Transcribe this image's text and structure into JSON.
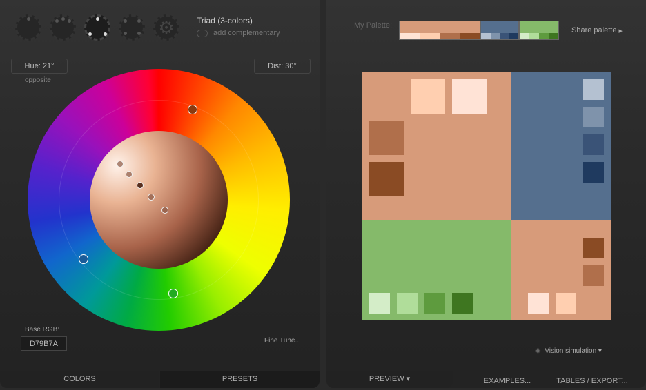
{
  "scheme": {
    "title": "Triad (3-colors)",
    "complementary_label": "add complementary",
    "modes": [
      "mono-icon",
      "analogic-icon",
      "triad-icon",
      "tetrad-icon",
      "custom-gear-icon"
    ],
    "active_mode": 2
  },
  "hue": {
    "label": "Hue: 21°",
    "sub": "opposite"
  },
  "dist": {
    "label": "Dist: 30°"
  },
  "base": {
    "label": "Base RGB:",
    "value": "D79B7A"
  },
  "fine_tune": "Fine Tune...",
  "left_tabs": [
    "COLORS",
    "PRESETS"
  ],
  "palette": {
    "label": "My Palette:",
    "share": "Share palette",
    "groups": [
      {
        "main": "#D79B7A",
        "shades": [
          "#FFE3D6",
          "#FFCFB0",
          "#B06F4B",
          "#8A4B24"
        ]
      },
      {
        "main": "#556F8E",
        "shades": [
          "#B4C1D1",
          "#7F93AB",
          "#3A5377",
          "#1F3A5F"
        ]
      },
      {
        "main": "#85BA6A",
        "shades": [
          "#D4EDC8",
          "#B0DD9A",
          "#5E9B3E",
          "#3E7620"
        ]
      }
    ]
  },
  "vision": "Vision simulation",
  "right_tabs": [
    "PREVIEW",
    "EXAMPLES...",
    "TABLES / EXPORT..."
  ]
}
